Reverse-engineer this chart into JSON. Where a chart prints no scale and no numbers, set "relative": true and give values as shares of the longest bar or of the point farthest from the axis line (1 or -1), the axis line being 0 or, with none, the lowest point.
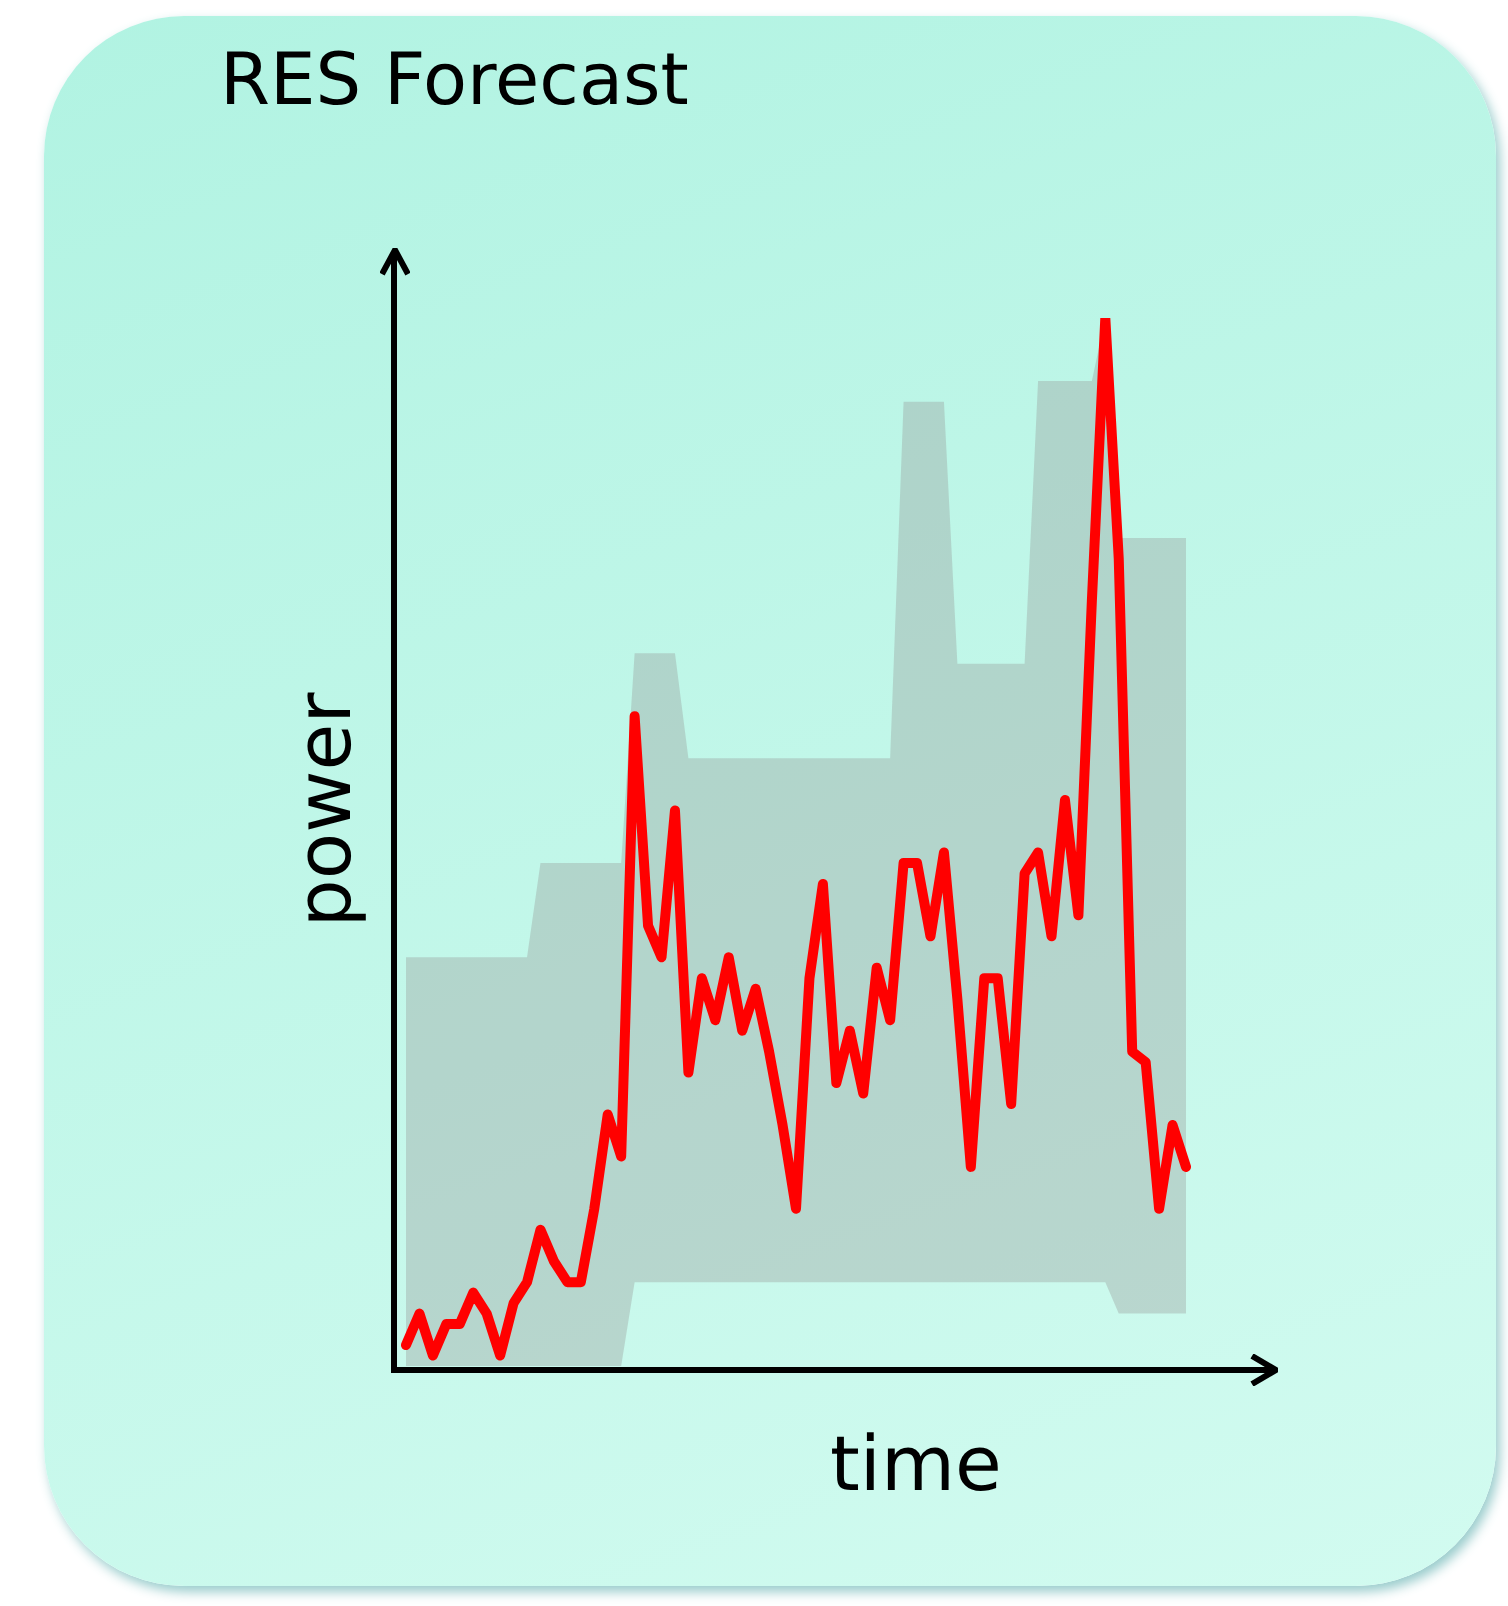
{
  "chart_data": {
    "type": "line",
    "title": "RES Forecast",
    "xlabel": "time",
    "ylabel": "power",
    "relative": true,
    "legend": false,
    "marker": "none",
    "line_style": "solid",
    "categories": [
      null,
      null,
      null,
      null,
      null,
      null,
      null,
      null,
      null,
      null,
      null,
      null,
      null,
      null,
      null,
      null,
      null,
      null,
      null,
      null,
      null,
      null,
      null,
      null,
      null,
      null,
      null,
      null,
      null,
      null,
      null,
      null,
      null,
      null,
      null,
      null,
      null,
      null,
      null,
      null,
      null,
      null,
      null,
      null,
      null,
      null,
      null,
      null,
      null,
      null,
      null,
      null,
      null,
      null,
      null,
      null,
      null,
      null,
      null
    ],
    "series": [
      {
        "color": "#ff0000",
        "values": [
          0.02,
          0.05,
          0.01,
          0.04,
          0.04,
          0.07,
          0.05,
          0.01,
          0.06,
          0.08,
          0.13,
          0.1,
          0.08,
          0.08,
          0.15,
          0.24,
          0.2,
          0.62,
          0.42,
          0.39,
          0.53,
          0.28,
          0.37,
          0.33,
          0.39,
          0.32,
          0.36,
          0.3,
          0.23,
          0.15,
          0.37,
          0.46,
          0.27,
          0.32,
          0.26,
          0.38,
          0.33,
          0.48,
          0.48,
          0.41,
          0.49,
          0.35,
          0.19,
          0.37,
          0.37,
          0.25,
          0.47,
          0.49,
          0.41,
          0.54,
          0.43,
          0.73,
          1,
          0.77,
          0.3,
          0.29,
          0.15,
          0.23,
          0.19
        ],
        "lower": [
          0,
          0,
          0,
          0,
          0,
          0,
          0,
          0,
          0,
          0,
          0,
          0,
          0,
          0,
          0,
          0,
          0,
          0.08,
          0.08,
          0.08,
          0.08,
          0.08,
          0.08,
          0.08,
          0.08,
          0.08,
          0.08,
          0.08,
          0.08,
          0.08,
          0.08,
          0.08,
          0.08,
          0.08,
          0.08,
          0.08,
          0.08,
          0.08,
          0.08,
          0.08,
          0.08,
          0.08,
          0.08,
          0.08,
          0.08,
          0.08,
          0.08,
          0.08,
          0.08,
          0.08,
          0.08,
          0.08,
          0.08,
          0.05,
          0.05,
          0.05,
          0.05,
          0.05,
          0.05
        ],
        "upper": [
          0.39,
          0.39,
          0.39,
          0.39,
          0.39,
          0.39,
          0.39,
          0.39,
          0.39,
          0.39,
          0.48,
          0.48,
          0.48,
          0.48,
          0.48,
          0.48,
          0.48,
          0.68,
          0.68,
          0.68,
          0.68,
          0.58,
          0.58,
          0.58,
          0.58,
          0.58,
          0.58,
          0.58,
          0.58,
          0.58,
          0.58,
          0.58,
          0.58,
          0.58,
          0.58,
          0.58,
          0.58,
          0.92,
          0.92,
          0.92,
          0.92,
          0.67,
          0.67,
          0.67,
          0.67,
          0.67,
          0.67,
          0.94,
          0.94,
          0.94,
          0.94,
          0.94,
          1,
          0.79,
          0.79,
          0.79,
          0.79,
          0.79,
          0.79
        ]
      }
    ]
  }
}
